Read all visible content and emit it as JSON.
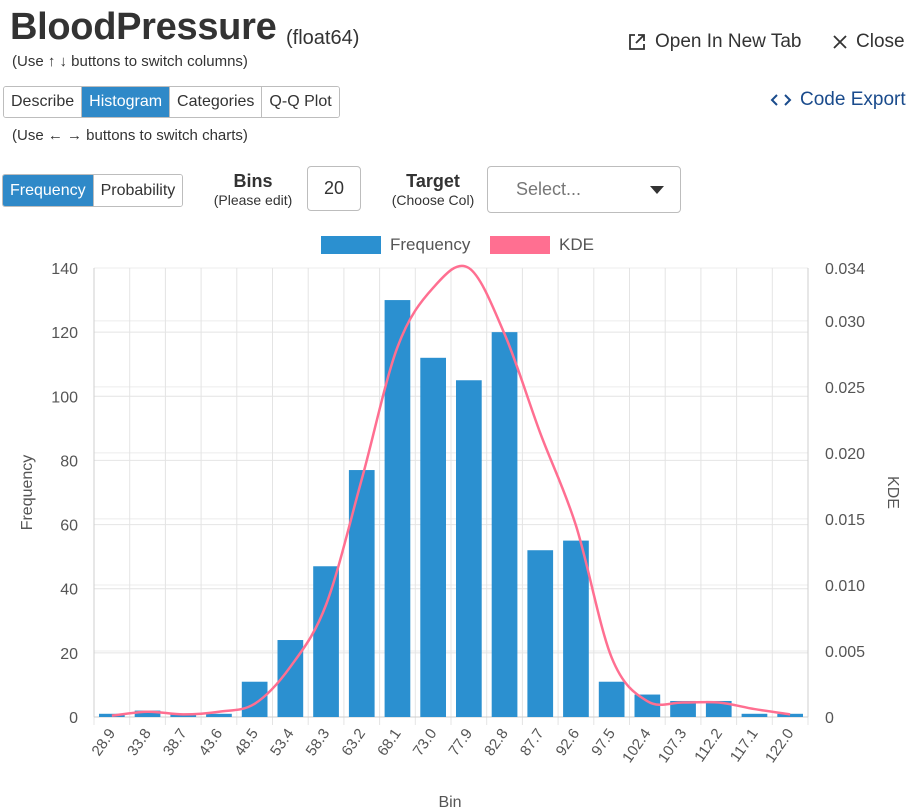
{
  "header": {
    "column_name": "BloodPressure",
    "dtype": "(float64)",
    "column_hint": "(Use ↑ ↓ buttons to switch columns)",
    "open_tab_label": "Open In New Tab",
    "close_label": "Close",
    "code_export_label": "Code Export"
  },
  "tabs": [
    {
      "label": "Describe",
      "active": false
    },
    {
      "label": "Histogram",
      "active": true
    },
    {
      "label": "Categories",
      "active": false
    },
    {
      "label": "Q-Q Plot",
      "active": false
    }
  ],
  "chart_hint": "(Use ← → buttons to switch charts)",
  "mode": {
    "frequency_label": "Frequency",
    "probability_label": "Probability",
    "selected": "Frequency"
  },
  "bins": {
    "label": "Bins",
    "sublabel": "(Please edit)",
    "value": "20"
  },
  "target": {
    "label": "Target",
    "sublabel": "(Choose Col)",
    "placeholder": "Select..."
  },
  "icons": {
    "open_tab": "external-link-icon",
    "close": "close-icon",
    "code_export": "code-icon",
    "select": "caret-down-icon"
  },
  "chart_data": {
    "type": "bar",
    "xlabel": "Bin",
    "ylabel": "Frequency",
    "y2label": "KDE",
    "categories": [
      "28.9",
      "33.8",
      "38.7",
      "43.6",
      "48.5",
      "53.4",
      "58.3",
      "63.2",
      "68.1",
      "73.0",
      "77.9",
      "82.8",
      "87.7",
      "92.6",
      "97.5",
      "102.4",
      "107.3",
      "112.2",
      "117.1",
      "122.0"
    ],
    "ylim": [
      0,
      140
    ],
    "yticks": [
      0,
      20,
      40,
      60,
      80,
      100,
      120,
      140
    ],
    "y2lim": [
      0,
      0.034
    ],
    "y2ticks": [
      0,
      0.005,
      0.01,
      0.015,
      0.02,
      0.025,
      0.03,
      0.034
    ],
    "y2ticklabels": [
      "0",
      "0.005",
      "0.010",
      "0.015",
      "0.020",
      "0.025",
      "0.030",
      "0.034"
    ],
    "legend_position": "top",
    "grid": true,
    "series": [
      {
        "name": "Frequency",
        "type": "bar",
        "axis": "left",
        "color": "#2b90d0",
        "values": [
          1,
          2,
          1,
          1,
          11,
          24,
          47,
          77,
          130,
          112,
          105,
          120,
          52,
          55,
          11,
          7,
          5,
          5,
          1,
          1
        ]
      },
      {
        "name": "KDE",
        "type": "line",
        "axis": "right",
        "color": "#ff6f91",
        "values": [
          0.0001,
          0.0004,
          0.0002,
          0.0004,
          0.001,
          0.0038,
          0.0085,
          0.018,
          0.028,
          0.0325,
          0.034,
          0.029,
          0.0215,
          0.0145,
          0.0045,
          0.0012,
          0.0011,
          0.0011,
          0.0006,
          0.0002
        ]
      }
    ]
  }
}
